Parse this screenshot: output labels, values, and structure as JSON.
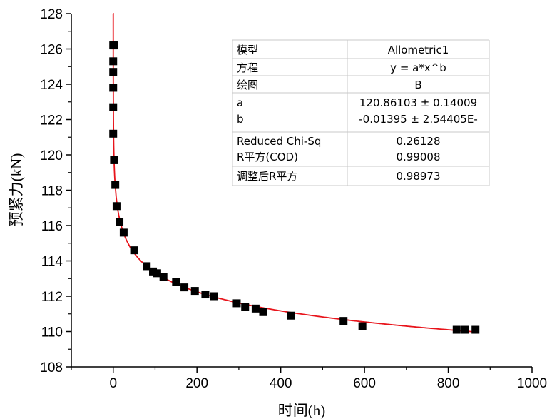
{
  "chart_data": {
    "type": "scatter",
    "xlabel": "时间(h)",
    "ylabel": "预紧力(kN)",
    "xlim": [
      -100,
      1000
    ],
    "ylim": [
      108,
      128
    ],
    "x_ticks": [
      0,
      200,
      400,
      600,
      800,
      1000
    ],
    "y_ticks": [
      108,
      110,
      112,
      114,
      116,
      118,
      120,
      122,
      124,
      126,
      128
    ],
    "colors": {
      "points": "#000000",
      "fit": "#e8141b",
      "grid": "#c8c8c8"
    },
    "series": [
      {
        "points": [
          [
            0,
            126.2
          ],
          [
            2,
            126.2
          ],
          [
            0,
            125.3
          ],
          [
            0,
            124.7
          ],
          [
            0,
            123.8
          ],
          [
            0,
            122.7
          ],
          [
            0,
            121.2
          ],
          [
            2,
            119.7
          ],
          [
            5,
            118.3
          ],
          [
            8,
            117.1
          ],
          [
            15,
            116.2
          ],
          [
            25,
            115.6
          ],
          [
            50,
            114.6
          ],
          [
            80,
            113.7
          ],
          [
            95,
            113.4
          ],
          [
            105,
            113.3
          ],
          [
            120,
            113.1
          ],
          [
            150,
            112.8
          ],
          [
            170,
            112.5
          ],
          [
            195,
            112.3
          ],
          [
            220,
            112.1
          ],
          [
            240,
            112.0
          ],
          [
            295,
            111.6
          ],
          [
            315,
            111.4
          ],
          [
            340,
            111.3
          ],
          [
            358,
            111.1
          ],
          [
            425,
            110.9
          ],
          [
            550,
            110.6
          ],
          [
            595,
            110.3
          ],
          [
            820,
            110.1
          ],
          [
            840,
            110.1
          ],
          [
            865,
            110.1
          ]
        ]
      }
    ],
    "fit": {
      "model": "Allometric1",
      "equation": "y = a*x^b",
      "a": 120.86103,
      "b": -0.01395,
      "x_range": [
        0.0001,
        865
      ]
    },
    "table": {
      "rows": [
        {
          "label": "模型",
          "value": "Allometric1"
        },
        {
          "label": "方程",
          "value": "y = a*x^b"
        },
        {
          "label": "绘图",
          "value": "B"
        },
        {
          "label": "a",
          "value": "120.86103 ± 0.14009"
        },
        {
          "label": "b",
          "value": "-0.01395 ± 2.54405E-"
        },
        {
          "label": "Reduced Chi-Sq",
          "value": "0.26128"
        },
        {
          "label": "R平方(COD)",
          "value": "0.99008"
        },
        {
          "label": "调整后R平方",
          "value": "0.98973"
        }
      ]
    }
  }
}
